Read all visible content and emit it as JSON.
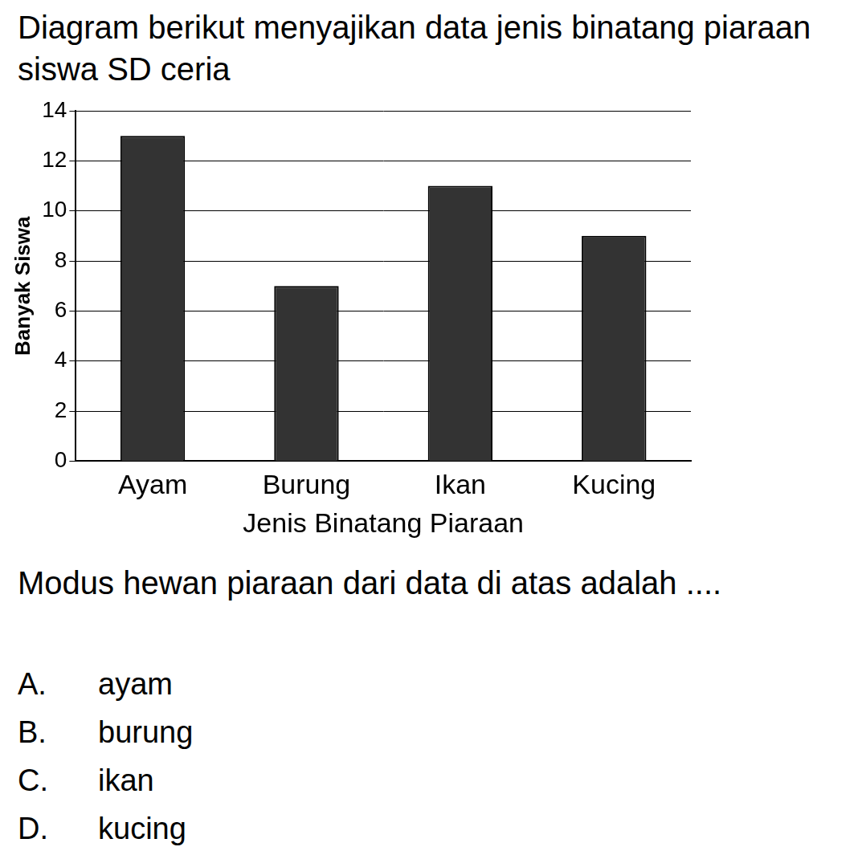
{
  "chart_data": {
    "type": "bar",
    "x_label": "Jenis Binatang Piaraan",
    "y_label": "Banyak Siswa",
    "categories": [
      "Ayam",
      "Burung",
      "Ikan",
      "Kucing"
    ],
    "values": [
      13,
      7,
      11,
      9
    ],
    "color": "#333333",
    "ylim": [
      0,
      14
    ],
    "yticks": [
      0,
      2,
      4,
      6,
      8,
      10,
      12,
      14
    ],
    "grid": true
  },
  "document": {
    "intro": "Diagram berikut menyajikan data jenis binatang piaraan siswa SD ceria",
    "question": "Modus hewan piaraan dari data di atas adalah ....",
    "options": [
      {
        "letter": "A.",
        "text": "ayam"
      },
      {
        "letter": "B.",
        "text": "burung"
      },
      {
        "letter": "C.",
        "text": "ikan"
      },
      {
        "letter": "D.",
        "text": "kucing"
      }
    ]
  }
}
